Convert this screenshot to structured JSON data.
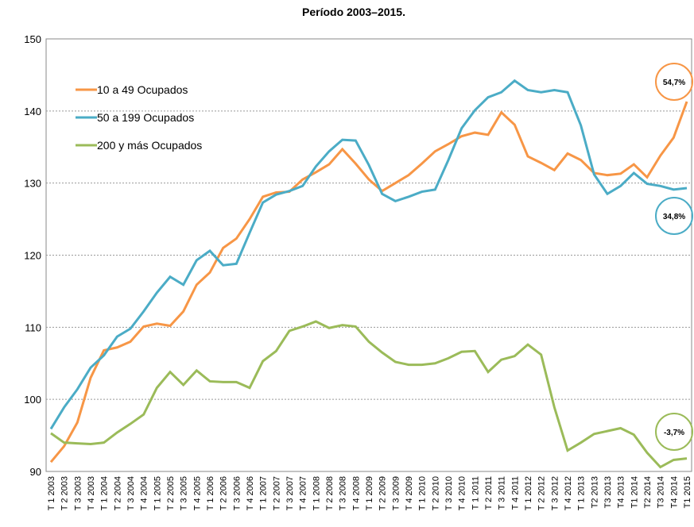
{
  "chart_data": {
    "type": "line",
    "title": "Período 2003–2015.",
    "categories": [
      "T 1 2003",
      "T 2 2003",
      "T 3 2003",
      "T 4 2003",
      "T 1 2004",
      "T 2 2004",
      "T 3 2004",
      "T 4 2004",
      "T 1 2005",
      "T 2 2005",
      "T 3 2005",
      "T 4 2005",
      "T 1 2006",
      "T 2 2006",
      "T 3 2006",
      "T 4 2006",
      "T 1 2007",
      "T 2 2007",
      "T 3 2007",
      "T 4 2007",
      "T 1 2008",
      "T 2 2008",
      "T 3 2008",
      "T 4 2008",
      "T 1 2009",
      "T 2 2009",
      "T 3 2009",
      "T 4 2009",
      "T 1 2010",
      "T 2 2010",
      "T 3 2010",
      "T 4 2010",
      "T 1 2011",
      "T 2 2011",
      "T 3 2011",
      "T 4 2011",
      "T 1 2012",
      "T 2 2012",
      "T 3 2012",
      "T 4 2012",
      "T 1 2013",
      "T2 2013",
      "T3 2013",
      "T4 2013",
      "T1 2014",
      "T2 2014",
      "T3 2014",
      "T4 2014",
      "T1 2015"
    ],
    "series": [
      {
        "name": "10 a 49 Ocupados",
        "color": "#f79646",
        "values": [
          91.3,
          93.5,
          96.8,
          103,
          106.8,
          107.2,
          108,
          110.1,
          110.5,
          110.2,
          112.2,
          115.9,
          117.6,
          121,
          122.3,
          125,
          128.1,
          128.7,
          128.8,
          130.5,
          131.5,
          132.6,
          134.7,
          132.7,
          130.5,
          128.9,
          130,
          131.1,
          132.7,
          134.4,
          135.4,
          136.5,
          137,
          136.7,
          139.8,
          138.1,
          133.7,
          132.8,
          131.8,
          134.1,
          133.2,
          131.4,
          131.1,
          131.3,
          132.6,
          130.8,
          133.8,
          136.3,
          141.3
        ]
      },
      {
        "name": "50 a 199 Ocupados",
        "color": "#4bacc6",
        "values": [
          95.9,
          98.9,
          101.4,
          104.4,
          106.1,
          108.7,
          109.8,
          112.2,
          114.8,
          117,
          115.9,
          119.3,
          120.6,
          118.6,
          118.8,
          123.1,
          127.3,
          128.4,
          128.9,
          129.6,
          132.3,
          134.4,
          136,
          135.9,
          132.5,
          128.5,
          127.5,
          128.1,
          128.8,
          129.1,
          133.2,
          137.6,
          140.1,
          141.9,
          142.6,
          144.2,
          142.9,
          142.6,
          142.9,
          142.6,
          138,
          131.2,
          128.5,
          129.6,
          131.4,
          129.9,
          129.6,
          129.1,
          129.3
        ]
      },
      {
        "name": "200 y más Ocupados",
        "color": "#9bbb59",
        "values": [
          95.3,
          94,
          93.9,
          93.8,
          94,
          95.4,
          96.6,
          97.9,
          101.6,
          103.8,
          102,
          104,
          102.5,
          102.4,
          102.4,
          101.6,
          105.3,
          106.7,
          109.5,
          110.1,
          110.8,
          109.9,
          110.3,
          110.1,
          108,
          106.5,
          105.2,
          104.8,
          104.8,
          105,
          105.7,
          106.6,
          106.7,
          103.8,
          105.5,
          106,
          107.6,
          106.2,
          98.9,
          92.9,
          94,
          95.2,
          95.6,
          96,
          95.1,
          92.6,
          90.6,
          91.6,
          91.8
        ]
      }
    ],
    "annotations": [
      "54,7%",
      "34,8%",
      "-3,7%"
    ],
    "ylim": [
      90,
      150
    ],
    "yticks": [
      90,
      100,
      110,
      120,
      130,
      140,
      150
    ],
    "grid": true,
    "legend": "upper left"
  }
}
